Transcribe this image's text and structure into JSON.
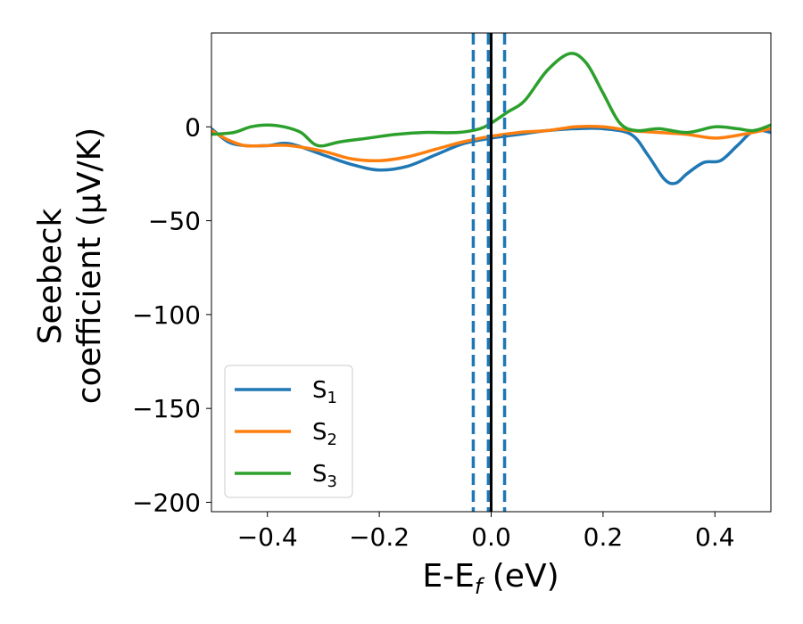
{
  "chart_data": {
    "type": "line",
    "title": "",
    "xlabel": "E-E",
    "xlabel_sub": "f",
    "xlabel_tail": " (eV)",
    "ylabel_line1": "Seebeck",
    "ylabel_line2": "coefficient  (μV/K)",
    "xlim": [
      -0.5,
      0.5
    ],
    "ylim": [
      -205,
      50
    ],
    "xticks": [
      -0.4,
      -0.2,
      0.0,
      0.2,
      0.4
    ],
    "xtick_labels": [
      "−0.4",
      "−0.2",
      "0.0",
      "0.2",
      "0.4"
    ],
    "yticks": [
      0,
      -50,
      -100,
      -150,
      -200
    ],
    "ytick_labels": [
      "0",
      "−50",
      "−100",
      "−150",
      "−200"
    ],
    "grid": false,
    "legend_position": "lower-left",
    "series": [
      {
        "name": "S",
        "subscript": "1",
        "color": "#1f77b4",
        "x": [
          -0.5,
          -0.47,
          -0.44,
          -0.4,
          -0.36,
          -0.3,
          -0.25,
          -0.2,
          -0.15,
          -0.1,
          -0.05,
          0.0,
          0.05,
          0.1,
          0.15,
          0.2,
          0.25,
          0.28,
          0.31,
          0.33,
          0.35,
          0.38,
          0.41,
          0.44,
          0.47,
          0.5
        ],
        "y": [
          -1,
          -8,
          -10,
          -10,
          -9,
          -15,
          -20,
          -23,
          -21,
          -15,
          -9,
          -6,
          -4,
          -2,
          -1,
          -1,
          -4,
          -15,
          -28,
          -30,
          -25,
          -19,
          -18,
          -10,
          -2,
          -3
        ]
      },
      {
        "name": "S",
        "subscript": "2",
        "color": "#ff7f0e",
        "x": [
          -0.5,
          -0.47,
          -0.44,
          -0.4,
          -0.36,
          -0.3,
          -0.25,
          -0.2,
          -0.15,
          -0.1,
          -0.05,
          0.0,
          0.05,
          0.1,
          0.15,
          0.2,
          0.25,
          0.3,
          0.35,
          0.4,
          0.45,
          0.5
        ],
        "y": [
          -2,
          -7,
          -10,
          -10,
          -10,
          -13,
          -17,
          -18,
          -16,
          -12,
          -8,
          -5,
          -3,
          -2,
          0,
          0,
          -2,
          -3,
          -4,
          -6,
          -4,
          -1
        ]
      },
      {
        "name": "S",
        "subscript": "3",
        "color": "#2ca02c",
        "x": [
          -0.5,
          -0.46,
          -0.43,
          -0.4,
          -0.37,
          -0.34,
          -0.31,
          -0.27,
          -0.22,
          -0.17,
          -0.12,
          -0.06,
          -0.02,
          0.0,
          0.03,
          0.06,
          0.1,
          0.14,
          0.17,
          0.2,
          0.23,
          0.26,
          0.3,
          0.35,
          0.4,
          0.44,
          0.47,
          0.5
        ],
        "y": [
          -4,
          -3,
          0,
          1,
          0,
          -3,
          -10,
          -8,
          -6,
          -4,
          -3,
          -3,
          -1,
          2,
          8,
          14,
          30,
          39,
          34,
          18,
          2,
          -2,
          -1,
          -3,
          0,
          -1,
          -2,
          1
        ]
      }
    ],
    "vlines": [
      {
        "x": -0.032,
        "color": "#1f77b4",
        "style": "dashed"
      },
      {
        "x": -0.005,
        "color": "#1f77b4",
        "style": "dashed"
      },
      {
        "x": 0.024,
        "color": "#1f77b4",
        "style": "dashed"
      },
      {
        "x": 0.0,
        "color": "#000000",
        "style": "solid"
      }
    ]
  }
}
